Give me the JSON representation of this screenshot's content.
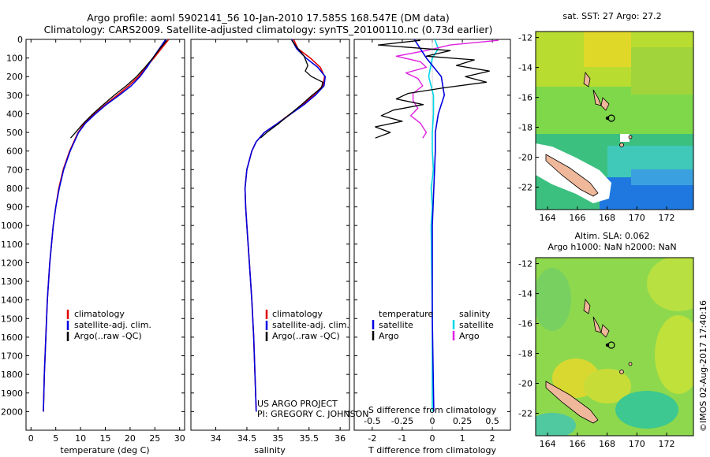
{
  "title": {
    "line1": "Argo profile: aoml 5902141_56 10-Jan-2010 17.585S 168.547E (DM data)",
    "line2": "Climatology: CARS2009. Satellite-adjusted climatology: synTS_20100110.nc (0.73d earlier)"
  },
  "credits": {
    "line1": "US ARGO PROJECT",
    "line2": "PI: GREGORY C. JOHNSON"
  },
  "timestamp": "©IMOS 02-Aug-2017 17:40:16",
  "map_sst": {
    "title": "sat. SST: 27 Argo: 27.2"
  },
  "map_sla": {
    "title1": "Altim. SLA: 0.062",
    "title2": "Argo h1000: NaN h2000: NaN"
  },
  "colors": {
    "climatology": "#e00000",
    "satellite": "#0000e0",
    "argo": "#000000",
    "sat_diff": "#00d8e8",
    "argo_diff": "#e020e0",
    "land": "#f0b89a"
  },
  "chart_data": [
    {
      "type": "line",
      "title": "",
      "xlabel": "temperature (deg C)",
      "ylabel": "",
      "xlim": [
        -1,
        31
      ],
      "ylim": [
        2100,
        0
      ],
      "xticks": [
        0,
        5,
        10,
        15,
        20,
        25,
        30
      ],
      "yticks": [
        0,
        100,
        200,
        300,
        400,
        500,
        600,
        700,
        800,
        900,
        1000,
        1100,
        1200,
        1300,
        1400,
        1500,
        1600,
        1700,
        1800,
        1900,
        2000
      ],
      "legend": [
        "climatology",
        "satellite-adj. clim.",
        "Argo(..raw -QC)"
      ],
      "series": [
        {
          "name": "climatology",
          "depth": [
            0,
            50,
            100,
            150,
            200,
            250,
            300,
            350,
            400,
            450,
            500,
            600,
            700,
            800,
            900,
            1000,
            1200,
            1400,
            1600,
            1800,
            2000
          ],
          "values": [
            27.8,
            26.3,
            24.8,
            23.2,
            21.7,
            19.7,
            17.4,
            15.0,
            12.8,
            10.8,
            9.5,
            7.8,
            6.5,
            5.6,
            5.0,
            4.5,
            3.8,
            3.3,
            3.0,
            2.7,
            2.5
          ]
        },
        {
          "name": "satellite-adj. clim.",
          "depth": [
            0,
            50,
            100,
            150,
            200,
            250,
            300,
            350,
            400,
            450,
            500,
            600,
            700,
            800,
            900,
            1000,
            1200,
            1400,
            1600,
            1800,
            2000
          ],
          "values": [
            27.2,
            25.9,
            24.6,
            23.4,
            22.0,
            20.2,
            17.8,
            15.2,
            13.0,
            11.0,
            9.6,
            7.9,
            6.6,
            5.7,
            5.0,
            4.5,
            3.8,
            3.3,
            3.0,
            2.7,
            2.5
          ]
        },
        {
          "name": "Argo(..raw -QC)",
          "depth": [
            5,
            50,
            100,
            150,
            200,
            250,
            300,
            350,
            400,
            450,
            500,
            530
          ],
          "values": [
            27.4,
            26.0,
            24.6,
            23.0,
            21.3,
            19.2,
            16.8,
            14.6,
            12.5,
            10.6,
            9.0,
            8.0
          ]
        }
      ]
    },
    {
      "type": "line",
      "title": "",
      "xlabel": "salinity",
      "ylabel": "",
      "xlim": [
        33.6,
        36.15
      ],
      "ylim": [
        2100,
        0
      ],
      "xticks": [
        34,
        34.5,
        35,
        35.5,
        36
      ],
      "legend": [
        "climatology",
        "satellite-adj. clim.",
        "Argo(..raw -QC)"
      ],
      "series": [
        {
          "name": "climatology",
          "depth": [
            0,
            50,
            100,
            150,
            200,
            250,
            300,
            350,
            400,
            450,
            500,
            550,
            600,
            700,
            800,
            900,
            1000,
            1200,
            1400,
            1600,
            1800,
            2000
          ],
          "values": [
            35.25,
            35.32,
            35.52,
            35.68,
            35.75,
            35.72,
            35.57,
            35.4,
            35.2,
            35.0,
            34.78,
            34.65,
            34.58,
            34.5,
            34.47,
            34.48,
            34.5,
            34.54,
            34.58,
            34.61,
            34.63,
            34.65
          ]
        },
        {
          "name": "satellite-adj. clim.",
          "depth": [
            0,
            50,
            100,
            150,
            200,
            250,
            300,
            350,
            400,
            450,
            500,
            550,
            600,
            700,
            800,
            900,
            1000,
            1200,
            1400,
            1600,
            1800,
            2000
          ],
          "values": [
            35.22,
            35.3,
            35.45,
            35.64,
            35.76,
            35.74,
            35.6,
            35.42,
            35.21,
            35.0,
            34.78,
            34.65,
            34.58,
            34.5,
            34.47,
            34.48,
            34.5,
            34.54,
            34.58,
            34.61,
            34.63,
            34.65
          ]
        },
        {
          "name": "Argo(..raw -QC)",
          "depth": [
            5,
            40,
            90,
            140,
            170,
            200,
            230,
            260,
            300,
            350,
            400,
            450,
            500,
            530
          ],
          "values": [
            35.22,
            35.3,
            35.42,
            35.48,
            35.44,
            35.54,
            35.72,
            35.7,
            35.55,
            35.38,
            35.2,
            35.02,
            34.82,
            34.72
          ]
        }
      ]
    },
    {
      "type": "line",
      "title": "",
      "xlabel": "T difference from climatology",
      "xlabel_top": "S difference from climatology",
      "ylabel": "",
      "xlim": [
        -2.6,
        2.6
      ],
      "ylim": [
        2100,
        0
      ],
      "xticks": [
        -2,
        -1,
        0,
        1,
        2
      ],
      "xticks_top": [
        -0.5,
        -0.25,
        0,
        0.25,
        0.5
      ],
      "legend_left_title": "temperature",
      "legend_right_title": "salinity",
      "legend": [
        "satellite",
        "Argo",
        "satellite",
        "Argo"
      ],
      "series": [
        {
          "name": "temperature satellite",
          "depth": [
            0,
            100,
            200,
            300,
            400,
            500,
            600,
            800,
            1000,
            1500,
            2000
          ],
          "values": [
            -0.6,
            -0.2,
            0.3,
            0.4,
            0.2,
            0.1,
            0.1,
            0.05,
            0.0,
            0.0,
            0.05
          ]
        },
        {
          "name": "temperature Argo",
          "depth": [
            5,
            30,
            60,
            90,
            110,
            140,
            170,
            200,
            230,
            260,
            290,
            320,
            350,
            380,
            410,
            440,
            470,
            500,
            530
          ],
          "values": [
            -0.4,
            -1.8,
            0.6,
            -0.2,
            1.4,
            0.8,
            1.9,
            1.1,
            1.8,
            0.4,
            -0.8,
            -1.2,
            -0.3,
            -1.3,
            -1.7,
            -1.0,
            -1.9,
            -1.4,
            -1.9
          ]
        },
        {
          "name": "salinity satellite",
          "depth": [
            0,
            50,
            100,
            200,
            300,
            400,
            500,
            600,
            700,
            800,
            900,
            1000,
            1500,
            2000
          ],
          "values": [
            0.02,
            0.05,
            0.0,
            -0.03,
            0.01,
            0.01,
            0.0,
            0.0,
            0.01,
            -0.01,
            0.0,
            -0.01,
            0.0,
            0.0
          ]
        },
        {
          "name": "salinity Argo",
          "depth": [
            5,
            30,
            60,
            90,
            120,
            150,
            180,
            210,
            250,
            290,
            330,
            370,
            410,
            450,
            500,
            530
          ],
          "values": [
            0.55,
            0.15,
            -0.05,
            -0.3,
            -0.1,
            -0.05,
            -0.22,
            -0.12,
            -0.08,
            -0.16,
            -0.16,
            -0.12,
            -0.18,
            -0.1,
            -0.05,
            -0.08
          ]
        }
      ]
    },
    {
      "type": "heatmap",
      "title": "sat. SST: 27 Argo: 27.2",
      "xticks": [
        164,
        166,
        168,
        170,
        172
      ],
      "yticks": [
        -12,
        -14,
        -16,
        -18,
        -20,
        -22
      ],
      "xlim": [
        163.2,
        173.8
      ],
      "ylim": [
        -23.5,
        -11.6
      ],
      "argo_position": [
        168.547,
        -17.585
      ]
    },
    {
      "type": "heatmap",
      "title": "Altim. SLA: 0.062",
      "xticks": [
        164,
        166,
        168,
        170,
        172
      ],
      "yticks": [
        -12,
        -14,
        -16,
        -18,
        -20,
        -22
      ],
      "xlim": [
        163.2,
        173.8
      ],
      "ylim": [
        -23.5,
        -11.6
      ],
      "argo_position": [
        168.547,
        -17.585
      ]
    }
  ]
}
